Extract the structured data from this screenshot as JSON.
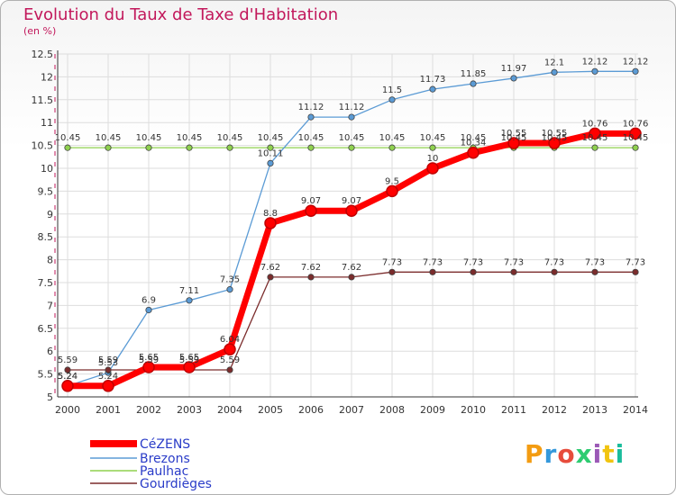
{
  "chart_data": {
    "type": "line",
    "title": "Evolution du Taux de Taxe d'Habitation",
    "subtitle": "(en %)",
    "categories": [
      "2000",
      "2001",
      "2002",
      "2003",
      "2004",
      "2005",
      "2006",
      "2007",
      "2008",
      "2009",
      "2010",
      "2011",
      "2012",
      "2013",
      "2014"
    ],
    "ylim": [
      5,
      12.5
    ],
    "yticks": [
      "5",
      "5.5",
      "6",
      "6.5",
      "7",
      "7.5",
      "8",
      "8.5",
      "9",
      "9.5",
      "10",
      "10.5",
      "11",
      "11.5",
      "12",
      "12.5"
    ],
    "grid": true,
    "legend_position": "bottom-left",
    "series": [
      {
        "name": "CéZENS",
        "color": "#ff0000",
        "values": [
          5.24,
          5.24,
          5.65,
          5.65,
          6.04,
          8.8,
          9.07,
          9.07,
          9.5,
          10,
          10.34,
          10.55,
          10.55,
          10.76,
          10.76
        ],
        "labels": [
          "5.24",
          "5.24",
          "5.65",
          "5.65",
          "6.04",
          "8.8",
          "9.07",
          "9.07",
          "9.5",
          "10",
          "10.34",
          "10.55",
          "10.55",
          "10.76",
          "10.76"
        ]
      },
      {
        "name": "Brezons",
        "color": "#5b9bd5",
        "values": [
          5.24,
          5.53,
          6.9,
          7.11,
          7.35,
          10.11,
          11.12,
          11.12,
          11.5,
          11.73,
          11.85,
          11.97,
          12.1,
          12.12,
          12.12
        ],
        "labels": [
          "5.24",
          "5.53",
          "6.9",
          "7.11",
          "7.35",
          "10.11",
          "11.12",
          "11.12",
          "11.5",
          "11.73",
          "11.85",
          "11.97",
          "12.1",
          "12.12",
          "12.12"
        ]
      },
      {
        "name": "Paulhac",
        "color": "#8fd14f",
        "values": [
          10.45,
          10.45,
          10.45,
          10.45,
          10.45,
          10.45,
          10.45,
          10.45,
          10.45,
          10.45,
          10.45,
          10.45,
          10.45,
          10.45,
          10.45
        ],
        "labels": [
          "10.45",
          "10.45",
          "10.45",
          "10.45",
          "10.45",
          "10.45",
          "10.45",
          "10.45",
          "10.45",
          "10.45",
          "10.45",
          "10.45",
          "10.45",
          "10.45",
          "10.45"
        ]
      },
      {
        "name": "Gourdièges",
        "color": "#7b2c2c",
        "values": [
          5.59,
          5.59,
          5.59,
          5.59,
          5.59,
          7.62,
          7.62,
          7.62,
          7.73,
          7.73,
          7.73,
          7.73,
          7.73,
          7.73,
          7.73
        ],
        "labels": [
          "5.59",
          "5.59",
          "5.59",
          "5.59",
          "5.59",
          "7.62",
          "7.62",
          "7.62",
          "7.73",
          "7.73",
          "7.73",
          "7.73",
          "7.73",
          "7.73",
          "7.73"
        ]
      }
    ]
  },
  "logo": {
    "text": "Proxiti",
    "letters": [
      "P",
      "r",
      "o",
      "x",
      "i",
      "t",
      "i"
    ],
    "colors": [
      "#f39c12",
      "#3498db",
      "#e74c3c",
      "#2ecc71",
      "#9b59b6",
      "#f1c40f",
      "#1abc9c"
    ]
  }
}
